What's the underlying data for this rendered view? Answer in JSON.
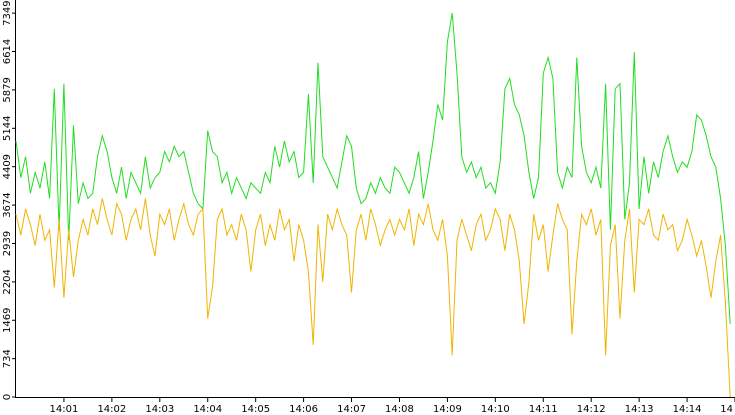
{
  "chart_data": {
    "type": "line",
    "x": [
      0,
      0.1,
      0.2,
      0.3,
      0.4,
      0.5,
      0.6,
      0.7,
      0.8,
      0.9,
      1,
      1.1,
      1.2,
      1.3,
      1.4,
      1.5,
      1.6,
      1.7,
      1.8,
      1.9,
      2,
      2.1,
      2.2,
      2.3,
      2.4,
      2.5,
      2.6,
      2.7,
      2.8,
      2.9,
      3,
      3.1,
      3.2,
      3.3,
      3.4,
      3.5,
      3.6,
      3.7,
      3.8,
      3.9,
      4,
      4.1,
      4.2,
      4.3,
      4.4,
      4.5,
      4.6,
      4.7,
      4.8,
      4.9,
      5,
      5.1,
      5.2,
      5.3,
      5.4,
      5.5,
      5.6,
      5.7,
      5.8,
      5.9,
      6,
      6.1,
      6.2,
      6.3,
      6.4,
      6.5,
      6.6,
      6.7,
      6.8,
      6.9,
      7,
      7.1,
      7.2,
      7.3,
      7.4,
      7.5,
      7.6,
      7.7,
      7.8,
      7.9,
      8,
      8.1,
      8.2,
      8.3,
      8.4,
      8.5,
      8.6,
      8.7,
      8.8,
      8.9,
      9,
      9.1,
      9.2,
      9.3,
      9.4,
      9.5,
      9.6,
      9.7,
      9.8,
      9.9,
      10,
      10.1,
      10.2,
      10.3,
      10.4,
      10.5,
      10.6,
      10.7,
      10.8,
      10.9,
      11,
      11.1,
      11.2,
      11.3,
      11.4,
      11.5,
      11.6,
      11.7,
      11.8,
      11.9,
      12,
      12.1,
      12.2,
      12.3,
      12.4,
      12.5,
      12.6,
      12.7,
      12.8,
      12.9,
      13,
      13.1,
      13.2,
      13.3,
      13.4,
      13.5,
      13.6,
      13.7,
      13.8,
      13.9,
      14,
      14.1,
      14.2,
      14.3,
      14.4,
      14.5,
      14.6,
      14.7,
      14.8,
      14.9
    ],
    "series": [
      {
        "color": "#22dd22",
        "values": [
          4900,
          4200,
          4600,
          3900,
          4300,
          4000,
          4500,
          3800,
          5900,
          3200,
          6000,
          3000,
          5200,
          3700,
          4100,
          3800,
          3900,
          4600,
          5000,
          4700,
          4200,
          3900,
          4400,
          3800,
          4300,
          4100,
          3900,
          4600,
          4000,
          4200,
          4300,
          4700,
          4500,
          4800,
          4600,
          4700,
          4300,
          3900,
          3700,
          3600,
          5100,
          4700,
          4600,
          4100,
          4300,
          3900,
          4200,
          4000,
          3800,
          4100,
          4000,
          3900,
          4300,
          4100,
          4800,
          4400,
          4900,
          4500,
          4700,
          4200,
          4300,
          5800,
          4100,
          6400,
          4600,
          4400,
          4200,
          4000,
          4500,
          5000,
          4800,
          4000,
          3700,
          3800,
          4100,
          3900,
          4200,
          4000,
          3900,
          4400,
          4300,
          4100,
          3900,
          4200,
          4700,
          3800,
          4300,
          4900,
          5600,
          5300,
          6800,
          7349,
          6200,
          4600,
          4300,
          4500,
          4200,
          4400,
          4000,
          4100,
          3900,
          4500,
          5900,
          6100,
          5600,
          5400,
          5000,
          4300,
          3800,
          4200,
          6200,
          6500,
          6100,
          4300,
          4000,
          4400,
          4200,
          6500,
          4800,
          4300,
          4100,
          4400,
          4000,
          6000,
          3200,
          5900,
          6000,
          3400,
          4100,
          6600,
          3600,
          4600,
          3900,
          4500,
          4200,
          4700,
          5000,
          4600,
          4300,
          4500,
          4400,
          4700,
          5400,
          5300,
          5000,
          4600,
          4400,
          3800,
          2900,
          1400
        ]
      },
      {
        "color": "#f0b400",
        "values": [
          3500,
          3100,
          3600,
          3300,
          2900,
          3500,
          3000,
          3200,
          2100,
          3400,
          1900,
          3200,
          2300,
          3000,
          3400,
          3100,
          3600,
          3300,
          3800,
          3400,
          3100,
          3700,
          3500,
          3000,
          3400,
          3600,
          3200,
          3800,
          3100,
          2700,
          3500,
          3300,
          3600,
          3000,
          3400,
          3700,
          3300,
          3100,
          3500,
          3600,
          1500,
          2100,
          3400,
          3600,
          3100,
          3300,
          3000,
          3500,
          3200,
          2400,
          3200,
          3500,
          2900,
          3300,
          3000,
          3600,
          3200,
          3400,
          2600,
          3300,
          3000,
          2400,
          1000,
          3300,
          2200,
          3500,
          3200,
          3600,
          3300,
          3100,
          2000,
          3200,
          3500,
          3000,
          3600,
          3300,
          2900,
          3200,
          3400,
          3100,
          3400,
          3200,
          3600,
          2900,
          3500,
          3300,
          3700,
          3200,
          3000,
          3400,
          2700,
          800,
          3000,
          3400,
          3100,
          2800,
          3300,
          3500,
          3000,
          3200,
          3600,
          3400,
          2800,
          3500,
          3200,
          2600,
          1400,
          2200,
          3500,
          3000,
          3300,
          2400,
          3100,
          3700,
          3400,
          3200,
          1200,
          2600,
          3500,
          3300,
          3600,
          3100,
          3400,
          800,
          2900,
          3300,
          1500,
          3000,
          3600,
          2000,
          3400,
          3300,
          3600,
          3100,
          3000,
          3500,
          3200,
          3300,
          2800,
          3000,
          3400,
          3100,
          2700,
          3000,
          2500,
          1900,
          2600,
          3100,
          1800,
          0
        ]
      }
    ],
    "xlim": [
      0,
      15
    ],
    "xticks": [
      {
        "value": 1,
        "label": "14:01"
      },
      {
        "value": 2,
        "label": "14:02"
      },
      {
        "value": 3,
        "label": "14:03"
      },
      {
        "value": 4,
        "label": "14:04"
      },
      {
        "value": 5,
        "label": "14:05"
      },
      {
        "value": 6,
        "label": "14:06"
      },
      {
        "value": 7,
        "label": "14:07"
      },
      {
        "value": 8,
        "label": "14:08"
      },
      {
        "value": 9,
        "label": "14:09"
      },
      {
        "value": 10,
        "label": "14:10"
      },
      {
        "value": 11,
        "label": "14:11"
      },
      {
        "value": 12,
        "label": "14:12"
      },
      {
        "value": 13,
        "label": "14:13"
      },
      {
        "value": 14,
        "label": "14:14"
      },
      {
        "value": 15,
        "label": "14"
      }
    ],
    "ylim": [
      0,
      7600
    ],
    "yticks": [
      0,
      734,
      1469,
      2204,
      2939,
      3674,
      4409,
      5144,
      5879,
      6614,
      7349
    ]
  }
}
